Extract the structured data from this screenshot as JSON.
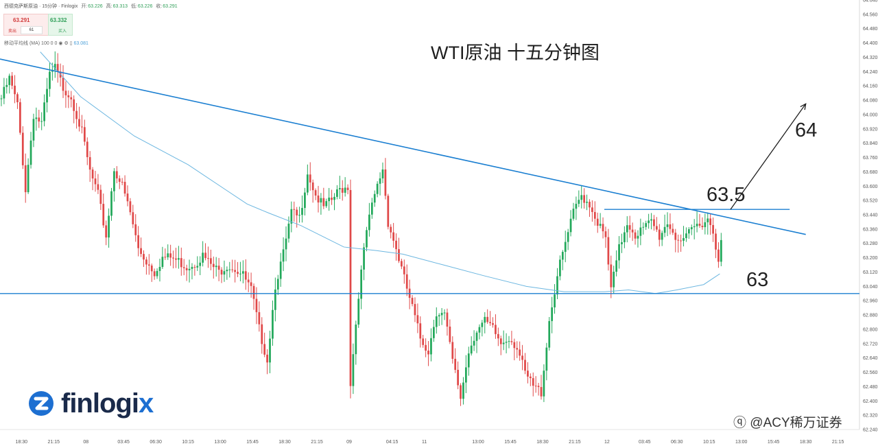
{
  "header": {
    "instrument": "西德克萨斯原油 · 15分钟 · Finlogix",
    "open_label": "开:",
    "open": "63.226",
    "high_label": "高:",
    "high": "63.313",
    "low_label": "低:",
    "low": "63.226",
    "close_label": "收:",
    "close": "63.291"
  },
  "quote": {
    "sell_price": "63.291",
    "sell_label": "卖出",
    "quantity": "61",
    "buy_price": "63.332",
    "buy_label": "买入"
  },
  "ma_legend": {
    "label": "移动平均线 (MA) 100 0 0",
    "value": "63.081"
  },
  "title": "WTI原油 十五分钟图",
  "annotations": {
    "target": "64",
    "resistance": "63.5",
    "support": "63"
  },
  "brand": {
    "name_part1": "finlogi",
    "name_part2": "x"
  },
  "watermark": "@ACY稀万证券",
  "colors": {
    "up": "#22a85a",
    "down": "#e04848",
    "trendline": "#1b7fd1",
    "ma": "#6bb6e0",
    "arrow": "#1e1e1e"
  },
  "chart_data": {
    "type": "candlestick",
    "timeframe": "15分钟",
    "ylim": [
      62.24,
      64.64
    ],
    "y_ticks": [
      62.24,
      62.32,
      62.4,
      62.48,
      62.56,
      62.64,
      62.72,
      62.8,
      62.88,
      62.96,
      63.04,
      63.12,
      63.2,
      63.28,
      63.36,
      63.44,
      63.52,
      63.6,
      63.68,
      63.76,
      63.84,
      63.92,
      64.0,
      64.08,
      64.16,
      64.24,
      64.32,
      64.4,
      64.48,
      64.56,
      64.64
    ],
    "x_ticks": [
      "18:30",
      "21:15",
      "08",
      "03:45",
      "06:30",
      "10:15",
      "13:00",
      "15:45",
      "18:30",
      "21:15",
      "09",
      "04:15",
      "11",
      "13:00",
      "15:45",
      "18:30",
      "21:15",
      "12",
      "03:45",
      "06:30",
      "10:15",
      "13:00",
      "15:45",
      "18:30",
      "21:15"
    ],
    "x_tick_bars": [
      8,
      20,
      32,
      46,
      58,
      70,
      82,
      94,
      106,
      118,
      130,
      146,
      158,
      178,
      190,
      202,
      214,
      226,
      240,
      252,
      264,
      276,
      288,
      300,
      312
    ],
    "bars_total": 320,
    "price_series": [
      [
        0,
        64.09
      ],
      [
        3,
        64.2
      ],
      [
        6,
        64.05
      ],
      [
        9,
        63.58
      ],
      [
        12,
        64.0
      ],
      [
        15,
        63.95
      ],
      [
        18,
        64.22
      ],
      [
        20,
        64.26
      ],
      [
        23,
        64.15
      ],
      [
        26,
        64.1
      ],
      [
        30,
        63.9
      ],
      [
        33,
        63.68
      ],
      [
        36,
        63.55
      ],
      [
        39,
        63.32
      ],
      [
        42,
        63.7
      ],
      [
        45,
        63.6
      ],
      [
        48,
        63.45
      ],
      [
        51,
        63.25
      ],
      [
        54,
        63.18
      ],
      [
        57,
        63.12
      ],
      [
        60,
        63.2
      ],
      [
        63,
        63.2
      ],
      [
        66,
        63.18
      ],
      [
        69,
        63.15
      ],
      [
        72,
        63.17
      ],
      [
        75,
        63.21
      ],
      [
        78,
        63.16
      ],
      [
        81,
        63.12
      ],
      [
        84,
        63.16
      ],
      [
        87,
        63.14
      ],
      [
        90,
        63.1
      ],
      [
        93,
        63.02
      ],
      [
        96,
        62.8
      ],
      [
        99,
        62.63
      ],
      [
        102,
        63.05
      ],
      [
        105,
        63.22
      ],
      [
        108,
        63.45
      ],
      [
        111,
        63.42
      ],
      [
        114,
        63.68
      ],
      [
        117,
        63.55
      ],
      [
        120,
        63.48
      ],
      [
        123,
        63.52
      ],
      [
        126,
        63.58
      ],
      [
        129,
        63.6
      ],
      [
        130,
        62.5
      ],
      [
        133,
        63.0
      ],
      [
        136,
        63.35
      ],
      [
        139,
        63.55
      ],
      [
        142,
        63.7
      ],
      [
        144,
        63.4
      ],
      [
        147,
        63.25
      ],
      [
        150,
        63.08
      ],
      [
        153,
        62.92
      ],
      [
        156,
        62.75
      ],
      [
        159,
        62.68
      ],
      [
        162,
        62.9
      ],
      [
        165,
        62.88
      ],
      [
        168,
        62.62
      ],
      [
        171,
        62.42
      ],
      [
        174,
        62.68
      ],
      [
        177,
        62.8
      ],
      [
        180,
        62.84
      ],
      [
        183,
        62.8
      ],
      [
        186,
        62.72
      ],
      [
        189,
        62.76
      ],
      [
        192,
        62.7
      ],
      [
        195,
        62.55
      ],
      [
        198,
        62.48
      ],
      [
        201,
        62.45
      ],
      [
        204,
        62.85
      ],
      [
        207,
        63.1
      ],
      [
        210,
        63.28
      ],
      [
        213,
        63.45
      ],
      [
        216,
        63.55
      ],
      [
        219,
        63.5
      ],
      [
        222,
        63.4
      ],
      [
        225,
        63.3
      ],
      [
        227,
        63.02
      ],
      [
        230,
        63.25
      ],
      [
        233,
        63.4
      ],
      [
        236,
        63.33
      ],
      [
        239,
        63.36
      ],
      [
        242,
        63.4
      ],
      [
        245,
        63.32
      ],
      [
        248,
        63.4
      ],
      [
        251,
        63.32
      ],
      [
        254,
        63.28
      ],
      [
        257,
        63.36
      ],
      [
        260,
        63.39
      ],
      [
        263,
        63.42
      ],
      [
        265,
        63.35
      ],
      [
        267,
        63.2
      ],
      [
        268,
        63.28
      ]
    ],
    "moving_average": {
      "name": "MA 100",
      "points": [
        [
          15,
          64.35
        ],
        [
          30,
          64.1
        ],
        [
          50,
          63.88
        ],
        [
          70,
          63.72
        ],
        [
          84,
          63.58
        ],
        [
          92,
          63.5
        ],
        [
          100,
          63.45
        ],
        [
          112,
          63.38
        ],
        [
          128,
          63.26
        ],
        [
          140,
          63.24
        ],
        [
          150,
          63.22
        ],
        [
          165,
          63.16
        ],
        [
          180,
          63.1
        ],
        [
          196,
          63.04
        ],
        [
          210,
          63.01
        ],
        [
          225,
          63.01
        ],
        [
          234,
          63.02
        ],
        [
          244,
          63.0
        ],
        [
          252,
          63.02
        ],
        [
          262,
          63.05
        ],
        [
          268,
          63.11
        ]
      ]
    },
    "trendline_upper": {
      "points": [
        [
          0,
          64.31
        ],
        [
          300,
          63.33
        ]
      ]
    },
    "horizontal_support": {
      "price": 63.0
    },
    "horizontal_resistance": {
      "from_bar": 225,
      "to_bar": 294,
      "price": 63.47
    },
    "projection_arrow": {
      "from": [
        272,
        63.47
      ],
      "to": [
        300,
        64.06
      ]
    },
    "last_price": 63.29
  }
}
